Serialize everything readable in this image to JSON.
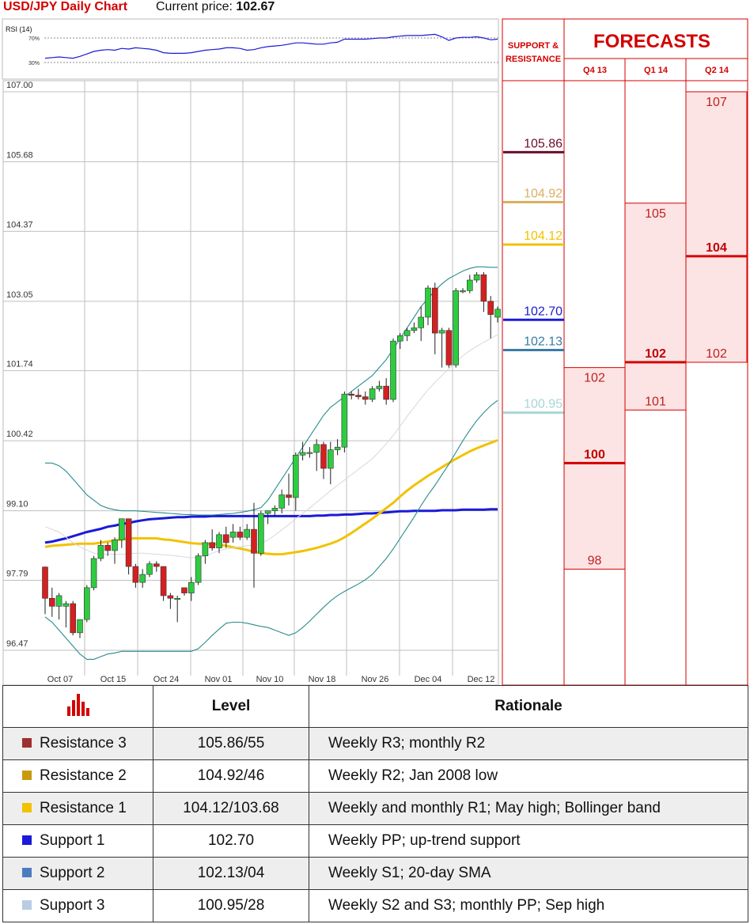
{
  "header": {
    "title": "USD/JPY Daily Chart",
    "price_label": "Current price: ",
    "price_value": "102.67"
  },
  "colors": {
    "title_red": "#d40000",
    "up_candle": "#2ecc40",
    "down_candle": "#d42020",
    "sma_blue": "#1a1ad8",
    "sma_yellow": "#f2c200",
    "bollinger": "#2a8c8c"
  },
  "rsi": {
    "label": "RSI (14)",
    "level_high": "70%",
    "level_low": "30%"
  },
  "panel": {
    "sr_title_line1": "SUPPORT &",
    "sr_title_line2": "RESISTANCE",
    "forecasts_title": "FORECASTS",
    "quarters": [
      "Q4 13",
      "Q1 14",
      "Q2 14"
    ]
  },
  "sr_levels": [
    {
      "label": "105.86",
      "value": 105.86,
      "color": "#6b0e2a"
    },
    {
      "label": "104.92",
      "value": 104.92,
      "color": "#d8b060"
    },
    {
      "label": "104.12",
      "value": 104.12,
      "color": "#f2c200"
    },
    {
      "label": "102.70",
      "value": 102.7,
      "color": "#1a1ad8"
    },
    {
      "label": "102.13",
      "value": 102.13,
      "color": "#3a7ca5"
    },
    {
      "label": "100.95",
      "value": 100.95,
      "color": "#a8d4d8"
    }
  ],
  "forecasts": [
    {
      "quarter": "Q4 13",
      "high": "102",
      "high_v": 101.8,
      "mid": "100",
      "mid_v": 100.0,
      "low": "98",
      "low_v": 98.0
    },
    {
      "quarter": "Q1 14",
      "high": "105",
      "high_v": 104.9,
      "mid": "102",
      "mid_v": 101.9,
      "low": "101",
      "low_v": 101.0
    },
    {
      "quarter": "Q2 14",
      "high": "107",
      "high_v": 107.0,
      "mid": "104",
      "mid_v": 103.9,
      "low": "102",
      "low_v": 101.9
    }
  ],
  "chart_data": {
    "type": "candlestick",
    "title": "USD/JPY Daily Chart",
    "y_ticks": [
      "107.00",
      "105.68",
      "104.37",
      "103.05",
      "101.74",
      "100.42",
      "99.10",
      "97.79",
      "96.47"
    ],
    "ylim": [
      96.2,
      107.0
    ],
    "x_ticks": [
      "Oct 07",
      "Oct 15",
      "Oct 24",
      "Nov 01",
      "Nov 10",
      "Nov 18",
      "Nov 26",
      "Dec 04",
      "Dec 12"
    ],
    "candles": [
      [
        98.04,
        98.05,
        97.15,
        97.45
      ],
      [
        97.45,
        97.65,
        97.1,
        97.3
      ],
      [
        97.3,
        97.55,
        97.05,
        97.5
      ],
      [
        97.3,
        97.4,
        96.9,
        97.35
      ],
      [
        97.35,
        97.4,
        96.75,
        96.8
      ],
      [
        96.8,
        97.05,
        96.7,
        97.05
      ],
      [
        97.05,
        97.7,
        97.0,
        97.65
      ],
      [
        97.65,
        98.25,
        97.6,
        98.2
      ],
      [
        98.2,
        98.55,
        98.15,
        98.45
      ],
      [
        98.45,
        98.5,
        98.25,
        98.35
      ],
      [
        98.35,
        98.6,
        98.1,
        98.55
      ],
      [
        98.55,
        98.95,
        98.4,
        98.95
      ],
      [
        98.95,
        98.95,
        97.9,
        98.05
      ],
      [
        98.05,
        98.1,
        97.65,
        97.75
      ],
      [
        97.75,
        98.0,
        97.65,
        97.9
      ],
      [
        97.9,
        98.15,
        97.85,
        98.1
      ],
      [
        98.1,
        98.15,
        97.95,
        98.05
      ],
      [
        98.05,
        98.05,
        97.4,
        97.5
      ],
      [
        97.5,
        97.55,
        97.25,
        97.45
      ],
      [
        97.45,
        97.5,
        97.0,
        97.45
      ],
      [
        97.65,
        97.65,
        97.5,
        97.55
      ],
      [
        97.55,
        97.85,
        97.4,
        97.75
      ],
      [
        97.75,
        98.3,
        97.7,
        98.25
      ],
      [
        98.25,
        98.55,
        98.1,
        98.5
      ],
      [
        98.5,
        98.75,
        98.35,
        98.4
      ],
      [
        98.4,
        98.7,
        98.3,
        98.65
      ],
      [
        98.65,
        98.8,
        98.4,
        98.5
      ],
      [
        98.6,
        98.85,
        98.5,
        98.7
      ],
      [
        98.7,
        98.8,
        98.55,
        98.6
      ],
      [
        98.6,
        98.85,
        98.55,
        98.75
      ],
      [
        98.75,
        99.25,
        97.65,
        98.3
      ],
      [
        98.3,
        99.1,
        98.25,
        99.05
      ],
      [
        99.05,
        99.1,
        98.85,
        99.1
      ],
      [
        99.1,
        99.2,
        99.0,
        99.15
      ],
      [
        99.15,
        99.5,
        99.05,
        99.4
      ],
      [
        99.4,
        99.8,
        99.2,
        99.35
      ],
      [
        99.35,
        100.2,
        99.1,
        100.15
      ],
      [
        100.15,
        100.4,
        100.05,
        100.2
      ],
      [
        100.2,
        100.3,
        100.1,
        100.2
      ],
      [
        100.2,
        100.45,
        99.85,
        100.35
      ],
      [
        100.35,
        100.4,
        99.7,
        99.9
      ],
      [
        99.9,
        100.4,
        99.6,
        100.25
      ],
      [
        100.25,
        100.45,
        100.15,
        100.3
      ],
      [
        100.3,
        101.35,
        100.2,
        101.3
      ],
      [
        101.3,
        101.35,
        101.2,
        101.28
      ],
      [
        101.28,
        101.4,
        101.2,
        101.25
      ],
      [
        101.25,
        101.35,
        101.1,
        101.2
      ],
      [
        101.2,
        101.45,
        101.15,
        101.4
      ],
      [
        101.4,
        101.55,
        101.35,
        101.45
      ],
      [
        101.45,
        101.6,
        101.1,
        101.2
      ],
      [
        101.2,
        102.35,
        101.15,
        102.3
      ],
      [
        102.3,
        102.45,
        102.15,
        102.4
      ],
      [
        102.4,
        102.55,
        102.3,
        102.5
      ],
      [
        102.5,
        102.65,
        102.45,
        102.55
      ],
      [
        102.55,
        102.95,
        102.3,
        102.75
      ],
      [
        102.75,
        103.35,
        102.6,
        103.3
      ],
      [
        103.3,
        103.4,
        102.05,
        102.45
      ],
      [
        102.45,
        102.55,
        101.8,
        102.5
      ],
      [
        102.5,
        102.55,
        101.8,
        101.85
      ],
      [
        101.85,
        103.3,
        101.8,
        103.25
      ],
      [
        103.25,
        103.3,
        103.2,
        103.25
      ],
      [
        103.25,
        103.55,
        103.2,
        103.45
      ],
      [
        103.45,
        103.6,
        103.4,
        103.55
      ],
      [
        103.55,
        103.6,
        102.85,
        103.05
      ],
      [
        103.05,
        103.15,
        102.35,
        102.8
      ],
      [
        102.75,
        102.95,
        102.65,
        102.9
      ]
    ],
    "series": [
      {
        "name": "",
        "values": [
          98.5,
          98.52,
          98.55,
          98.58,
          98.62,
          98.66,
          98.7,
          98.73,
          98.76,
          98.8,
          98.82,
          98.85,
          98.87,
          98.9,
          98.92,
          98.94,
          98.95,
          98.96,
          98.97,
          98.98,
          98.98,
          98.99,
          98.99,
          98.99,
          99.0,
          99.0,
          99.0,
          99.0,
          99.0,
          99.0,
          99.0,
          99.0,
          99.0,
          99.0,
          99.0,
          99.0,
          99.0,
          99.0,
          99.0,
          99.01,
          99.01,
          99.02,
          99.02,
          99.03,
          99.03,
          99.04,
          99.05,
          99.05,
          99.06,
          99.07,
          99.08,
          99.09,
          99.09,
          99.1,
          99.1,
          99.1,
          99.1,
          99.11,
          99.11,
          99.11,
          99.12,
          99.12,
          99.12,
          99.12,
          99.13,
          99.13
        ]
      },
      {
        "name": "",
        "values": [
          98.42,
          98.44,
          98.45,
          98.46,
          98.47,
          98.48,
          98.48,
          98.48,
          98.5,
          98.52,
          98.54,
          98.56,
          98.58,
          98.58,
          98.58,
          98.58,
          98.58,
          98.56,
          98.55,
          98.53,
          98.51,
          98.49,
          98.48,
          98.48,
          98.48,
          98.46,
          98.44,
          98.41,
          98.39,
          98.36,
          98.33,
          98.3,
          98.29,
          98.28,
          98.28,
          98.3,
          98.32,
          98.34,
          98.37,
          98.4,
          98.44,
          98.48,
          98.53,
          98.6,
          98.68,
          98.77,
          98.86,
          98.95,
          99.05,
          99.15,
          99.25,
          99.37,
          99.48,
          99.58,
          99.67,
          99.76,
          99.84,
          99.92,
          100.0,
          100.08,
          100.15,
          100.22,
          100.28,
          100.33,
          100.38,
          100.43
        ]
      },
      {
        "name": "",
        "values": [
          100.0,
          100.0,
          99.95,
          99.85,
          99.7,
          99.55,
          99.4,
          99.3,
          99.2,
          99.15,
          99.12,
          99.1,
          99.1,
          99.1,
          99.09,
          99.08,
          99.07,
          99.06,
          99.05,
          99.04,
          99.03,
          99.03,
          99.02,
          99.02,
          99.02,
          99.03,
          99.04,
          99.05,
          99.07,
          99.09,
          99.12,
          99.16,
          99.3,
          99.5,
          99.7,
          99.9,
          100.1,
          100.3,
          100.5,
          100.7,
          100.9,
          101.05,
          101.15,
          101.25,
          101.35,
          101.45,
          101.55,
          101.65,
          101.8,
          101.95,
          102.15,
          102.35,
          102.55,
          102.75,
          102.95,
          103.1,
          103.25,
          103.38,
          103.48,
          103.55,
          103.62,
          103.67,
          103.7,
          103.7,
          103.69,
          103.69
        ]
      },
      {
        "name": "",
        "values": [
          97.1,
          97.0,
          96.85,
          96.7,
          96.55,
          96.4,
          96.3,
          96.3,
          96.35,
          96.4,
          96.42,
          96.45,
          96.45,
          96.45,
          96.45,
          96.45,
          96.45,
          96.45,
          96.45,
          96.45,
          96.45,
          96.45,
          96.5,
          96.62,
          96.75,
          96.87,
          96.98,
          97.0,
          97.0,
          96.98,
          96.95,
          96.92,
          96.9,
          96.85,
          96.8,
          96.75,
          96.8,
          96.9,
          97.02,
          97.15,
          97.28,
          97.4,
          97.5,
          97.58,
          97.65,
          97.72,
          97.8,
          97.9,
          98.05,
          98.2,
          98.38,
          98.58,
          98.78,
          98.98,
          99.2,
          99.4,
          99.58,
          99.78,
          99.98,
          100.2,
          100.42,
          100.62,
          100.8,
          100.95,
          101.08,
          101.18
        ]
      },
      {
        "name": "",
        "values": [
          98.8,
          98.75,
          98.7,
          98.6,
          98.5,
          98.42,
          98.36,
          98.3,
          98.28,
          98.28,
          98.28,
          98.28,
          98.29,
          98.3,
          98.3,
          98.29,
          98.28,
          98.27,
          98.26,
          98.25,
          98.23,
          98.22,
          98.22,
          98.25,
          98.3,
          98.35,
          98.38,
          98.4,
          98.42,
          98.44,
          98.46,
          98.48,
          98.55,
          98.64,
          98.74,
          98.84,
          98.95,
          99.05,
          99.15,
          99.26,
          99.37,
          99.48,
          99.58,
          99.68,
          99.78,
          99.88,
          99.98,
          100.08,
          100.22,
          100.36,
          100.52,
          100.7,
          100.88,
          101.05,
          101.22,
          101.38,
          101.52,
          101.65,
          101.78,
          101.9,
          102.02,
          102.12,
          102.2,
          102.28,
          102.35,
          102.42
        ]
      }
    ],
    "rsi_values": [
      37,
      38,
      39,
      38,
      37,
      40,
      44,
      48,
      50,
      51,
      50,
      53,
      52,
      54,
      53,
      52,
      50,
      46,
      45,
      45,
      45,
      46,
      48,
      50,
      51,
      52,
      54,
      54,
      53,
      50,
      51,
      54,
      56,
      57,
      58,
      60,
      62,
      62,
      61,
      60,
      60,
      62,
      63,
      68,
      68,
      68,
      68,
      69,
      70,
      70,
      72,
      73,
      74,
      74,
      74,
      75,
      76,
      72,
      66,
      70,
      71,
      71,
      72,
      70,
      67,
      68
    ]
  },
  "table": {
    "icon": "bar-chart-icon",
    "header_level": "Level",
    "header_rationale": "Rationale",
    "rows": [
      {
        "name": "Resistance 3",
        "level": "105.86/55",
        "rationale": "Weekly R3; monthly R2",
        "color": "#9e3030"
      },
      {
        "name": "Resistance 2",
        "level": "104.92/46",
        "rationale": "Weekly R2; Jan 2008 low",
        "color": "#c89a10"
      },
      {
        "name": "Resistance 1",
        "level": "104.12/103.68",
        "rationale": "Weekly and monthly R1; May high; Bollinger band",
        "color": "#f2c200"
      },
      {
        "name": "Support 1",
        "level": "102.70",
        "rationale": "Weekly PP; up-trend support",
        "color": "#1a1ad8"
      },
      {
        "name": "Support 2",
        "level": "102.13/04",
        "rationale": "Weekly S1; 20-day SMA",
        "color": "#4a7cc0"
      },
      {
        "name": "Support 3",
        "level": "100.95/28",
        "rationale": "Weekly S2 and S3; monthly PP; Sep high",
        "color": "#b8cce4"
      }
    ]
  }
}
